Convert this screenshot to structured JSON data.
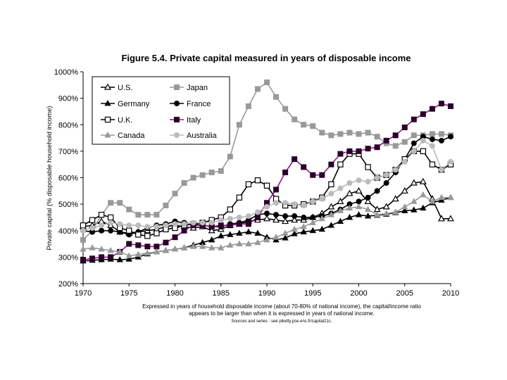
{
  "chart_data": {
    "type": "line",
    "title": "Figure 5.4. Private capital measured in years of disposable income",
    "ylabel": "Private capital (% disposable household income)",
    "xlabel": "",
    "xlim": [
      1970,
      2010
    ],
    "ylim": [
      200,
      1000
    ],
    "x_ticks": [
      1970,
      1975,
      1980,
      1985,
      1990,
      1995,
      2000,
      2005,
      2010
    ],
    "y_ticks": [
      200,
      300,
      400,
      500,
      600,
      700,
      800,
      900,
      1000
    ],
    "y_tick_labels": [
      "200%",
      "300%",
      "400%",
      "500%",
      "600%",
      "700%",
      "800%",
      "900%",
      "1000%"
    ],
    "grid": false,
    "legend_position": "top-left",
    "note_line1": "Expressed in years of household disposable income (about 70-80% of national income), the capital/income ratio",
    "note_line2": "appears to be larger than when it is expressed in years of national income.",
    "sources": "Sources and series : see piketty.pse.ens.fr/capital21c.",
    "series": [
      {
        "name": "U.S.",
        "color": "#000000",
        "marker": "triangle-open",
        "legend_slot": "left-1",
        "x": [
          1970,
          1971,
          1972,
          1973,
          1974,
          1975,
          1976,
          1977,
          1978,
          1979,
          1980,
          1981,
          1982,
          1983,
          1984,
          1985,
          1986,
          1987,
          1988,
          1989,
          1990,
          1991,
          1992,
          1993,
          1994,
          1995,
          1996,
          1997,
          1998,
          1999,
          2000,
          2001,
          2002,
          2003,
          2004,
          2005,
          2006,
          2007,
          2008,
          2009,
          2010
        ],
        "values": [
          415,
          420,
          435,
          420,
          395,
          390,
          395,
          400,
          405,
          415,
          420,
          415,
          410,
          415,
          400,
          405,
          420,
          425,
          435,
          440,
          445,
          440,
          435,
          440,
          440,
          450,
          465,
          490,
          510,
          540,
          550,
          510,
          480,
          490,
          520,
          550,
          580,
          585,
          520,
          445,
          445
        ]
      },
      {
        "name": "Japan",
        "color": "#999999",
        "marker": "square-filled",
        "legend_slot": "right-1",
        "x": [
          1970,
          1971,
          1972,
          1973,
          1974,
          1975,
          1976,
          1977,
          1978,
          1979,
          1980,
          1981,
          1982,
          1983,
          1984,
          1985,
          1986,
          1987,
          1988,
          1989,
          1990,
          1991,
          1992,
          1993,
          1994,
          1995,
          1996,
          1997,
          1998,
          1999,
          2000,
          2001,
          2002,
          2003,
          2004,
          2005,
          2006,
          2007,
          2008,
          2009,
          2010
        ],
        "values": [
          365,
          400,
          460,
          505,
          505,
          480,
          460,
          460,
          460,
          495,
          540,
          580,
          600,
          610,
          620,
          625,
          680,
          800,
          870,
          935,
          960,
          905,
          860,
          820,
          800,
          795,
          770,
          760,
          765,
          770,
          765,
          770,
          755,
          730,
          720,
          735,
          760,
          760,
          765,
          765,
          760
        ]
      },
      {
        "name": "Germany",
        "color": "#000000",
        "marker": "triangle-filled",
        "legend_slot": "left-2",
        "x": [
          1970,
          1971,
          1972,
          1973,
          1974,
          1975,
          1976,
          1977,
          1978,
          1979,
          1980,
          1981,
          1982,
          1983,
          1984,
          1985,
          1986,
          1987,
          1988,
          1989,
          1990,
          1991,
          1992,
          1993,
          1994,
          1995,
          1996,
          1997,
          1998,
          1999,
          2000,
          2001,
          2002,
          2003,
          2004,
          2005,
          2006,
          2007,
          2008,
          2009,
          2010
        ],
        "values": [
          285,
          288,
          290,
          292,
          290,
          292,
          300,
          312,
          320,
          325,
          330,
          335,
          345,
          355,
          365,
          380,
          385,
          390,
          395,
          390,
          375,
          365,
          372,
          388,
          395,
          400,
          405,
          420,
          435,
          450,
          460,
          455,
          458,
          462,
          468,
          475,
          478,
          485,
          505,
          515,
          525
        ]
      },
      {
        "name": "France",
        "color": "#000000",
        "marker": "circle-filled",
        "legend_slot": "right-2",
        "x": [
          1970,
          1971,
          1972,
          1973,
          1974,
          1975,
          1976,
          1977,
          1978,
          1979,
          1980,
          1981,
          1982,
          1983,
          1984,
          1985,
          1986,
          1987,
          1988,
          1989,
          1990,
          1991,
          1992,
          1993,
          1994,
          1995,
          1996,
          1997,
          1998,
          1999,
          2000,
          2001,
          2002,
          2003,
          2004,
          2005,
          2006,
          2007,
          2008,
          2009,
          2010
        ],
        "values": [
          400,
          395,
          400,
          400,
          395,
          385,
          395,
          410,
          420,
          425,
          435,
          430,
          425,
          420,
          415,
          415,
          425,
          430,
          440,
          460,
          465,
          460,
          455,
          455,
          450,
          450,
          455,
          465,
          480,
          500,
          510,
          525,
          550,
          580,
          620,
          670,
          730,
          755,
          745,
          740,
          755
        ]
      },
      {
        "name": "U.K.",
        "color": "#000000",
        "marker": "square-open",
        "legend_slot": "left-3",
        "x": [
          1970,
          1971,
          1972,
          1973,
          1974,
          1975,
          1976,
          1977,
          1978,
          1979,
          1980,
          1981,
          1982,
          1983,
          1984,
          1985,
          1986,
          1987,
          1988,
          1989,
          1990,
          1991,
          1992,
          1993,
          1994,
          1995,
          1996,
          1997,
          1998,
          1999,
          2000,
          2001,
          2002,
          2003,
          2004,
          2005,
          2006,
          2007,
          2008,
          2009,
          2010
        ],
        "values": [
          420,
          440,
          460,
          450,
          410,
          400,
          385,
          380,
          390,
          405,
          410,
          420,
          425,
          430,
          440,
          450,
          480,
          525,
          575,
          590,
          570,
          520,
          495,
          495,
          500,
          510,
          525,
          575,
          650,
          690,
          690,
          640,
          600,
          610,
          630,
          670,
          700,
          700,
          650,
          630,
          650
        ]
      },
      {
        "name": "Italy",
        "color": "#2a0028",
        "line_color": "#8c1a8c",
        "marker": "square-filled",
        "legend_slot": "right-3",
        "x": [
          1970,
          1971,
          1972,
          1973,
          1974,
          1975,
          1976,
          1977,
          1978,
          1979,
          1980,
          1981,
          1982,
          1983,
          1984,
          1985,
          1986,
          1987,
          1988,
          1989,
          1990,
          1991,
          1992,
          1993,
          1994,
          1995,
          1996,
          1997,
          1998,
          1999,
          2000,
          2001,
          2002,
          2003,
          2004,
          2005,
          2006,
          2007,
          2008,
          2009,
          2010
        ],
        "values": [
          290,
          295,
          300,
          300,
          320,
          350,
          345,
          340,
          340,
          355,
          375,
          400,
          420,
          420,
          415,
          420,
          420,
          425,
          425,
          450,
          505,
          555,
          620,
          670,
          640,
          610,
          610,
          650,
          690,
          700,
          700,
          710,
          715,
          740,
          760,
          790,
          820,
          840,
          860,
          880,
          870
        ]
      },
      {
        "name": "Canada",
        "color": "#999999",
        "marker": "triangle-filled",
        "legend_slot": "left-4",
        "x": [
          1970,
          1971,
          1972,
          1973,
          1974,
          1975,
          1976,
          1977,
          1978,
          1979,
          1980,
          1981,
          1982,
          1983,
          1984,
          1985,
          1986,
          1987,
          1988,
          1989,
          1990,
          1991,
          1992,
          1993,
          1994,
          1995,
          1996,
          1997,
          1998,
          1999,
          2000,
          2001,
          2002,
          2003,
          2004,
          2005,
          2006,
          2007,
          2008,
          2009,
          2010
        ],
        "values": [
          330,
          335,
          330,
          325,
          320,
          305,
          310,
          315,
          320,
          325,
          330,
          335,
          340,
          340,
          335,
          335,
          345,
          350,
          350,
          355,
          365,
          375,
          390,
          405,
          415,
          430,
          445,
          460,
          475,
          485,
          490,
          480,
          460,
          465,
          470,
          490,
          510,
          535,
          510,
          525,
          525
        ]
      },
      {
        "name": "Australia",
        "color": "#bbbbbb",
        "marker": "circle-filled",
        "legend_slot": "right-4",
        "x": [
          1970,
          1971,
          1972,
          1973,
          1974,
          1975,
          1976,
          1977,
          1978,
          1979,
          1980,
          1981,
          1982,
          1983,
          1984,
          1985,
          1986,
          1987,
          1988,
          1989,
          1990,
          1991,
          1992,
          1993,
          1994,
          1995,
          1996,
          1997,
          1998,
          1999,
          2000,
          2001,
          2002,
          2003,
          2004,
          2005,
          2006,
          2007,
          2008,
          2009,
          2010
        ],
        "values": [
          400,
          410,
          420,
          430,
          425,
          420,
          420,
          415,
          415,
          420,
          425,
          425,
          430,
          430,
          430,
          440,
          445,
          450,
          455,
          470,
          490,
          505,
          505,
          500,
          495,
          510,
          520,
          540,
          560,
          580,
          590,
          585,
          600,
          610,
          630,
          660,
          700,
          740,
          720,
          630,
          660
        ]
      }
    ]
  }
}
